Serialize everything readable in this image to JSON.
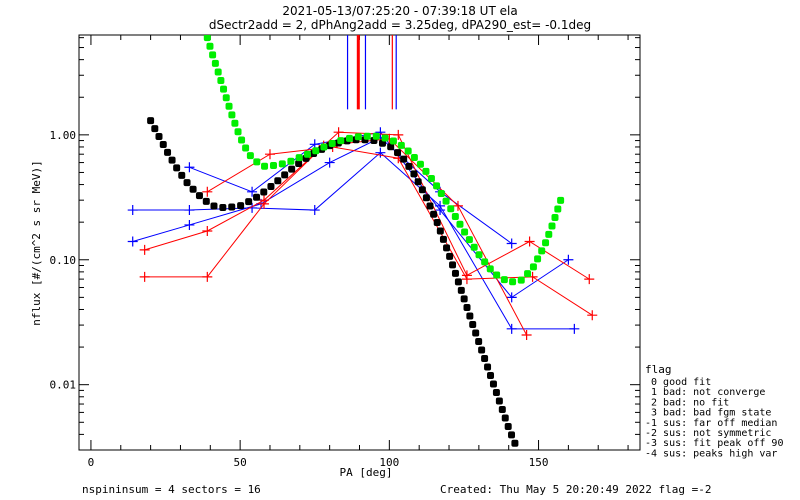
{
  "chart_data": {
    "type": "line",
    "title": "2021-05-13/07:25:20 - 07:39:18 UT ela",
    "subtitle": "dSectr2add = 2, dPhAng2add = 3.25deg, dPA290_est=  -0.1deg",
    "xlabel": "PA [deg]",
    "ylabel": "nflux [#/(cm^2 s sr MeV)]",
    "xlim": [
      -4,
      184
    ],
    "ylim": [
      0.003,
      6.3
    ],
    "yscale": "log",
    "xticks": [
      0,
      50,
      100,
      150
    ],
    "xtick_labels": [
      "0",
      "50",
      "100",
      "150"
    ],
    "yticks": [
      0.01,
      0.1,
      1.0
    ],
    "ytick_labels": [
      "0.01",
      "0.10",
      "1.00"
    ],
    "grid": false,
    "series": [
      {
        "name": "blue-1",
        "color": "#0000ff",
        "x": [
          14,
          33,
          54,
          75,
          97,
          117,
          141,
          162
        ],
        "y": [
          0.25,
          0.25,
          0.26,
          0.25,
          0.72,
          0.27,
          0.028,
          0.028
        ]
      },
      {
        "name": "blue-2",
        "color": "#0000ff",
        "x": [
          33,
          54,
          75,
          97,
          117,
          141,
          160
        ],
        "y": [
          0.55,
          0.35,
          0.84,
          1.05,
          0.25,
          0.05,
          0.1
        ]
      },
      {
        "name": "blue-3",
        "color": "#0000ff",
        "x": [
          14,
          33,
          57,
          80,
          97,
          117,
          141
        ],
        "y": [
          0.14,
          0.19,
          0.28,
          0.6,
          0.95,
          0.35,
          0.135
        ]
      },
      {
        "name": "red-1",
        "color": "#ff0000",
        "x": [
          18,
          39,
          58,
          78,
          100,
          123,
          146
        ],
        "y": [
          0.073,
          0.073,
          0.28,
          0.82,
          0.93,
          0.27,
          0.025
        ]
      },
      {
        "name": "red-2",
        "color": "#ff0000",
        "x": [
          18,
          39,
          58,
          83,
          103,
          126,
          147,
          167
        ],
        "y": [
          0.12,
          0.17,
          0.3,
          1.05,
          1.0,
          0.075,
          0.14,
          0.07
        ]
      },
      {
        "name": "red-3",
        "color": "#ff0000",
        "x": [
          39,
          60,
          81,
          103,
          126,
          148,
          168
        ],
        "y": [
          0.35,
          0.7,
          0.8,
          0.65,
          0.07,
          0.073,
          0.036
        ]
      }
    ],
    "fits": [
      {
        "name": "fit-black",
        "color": "#000000",
        "style": "dotted-thick",
        "x": [
          20,
          23,
          26,
          29,
          32,
          35,
          38,
          41,
          45,
          50,
          55,
          60,
          65,
          70,
          75,
          80,
          85,
          90,
          95,
          100,
          104,
          108,
          112,
          116,
          120,
          124,
          128,
          132,
          136,
          140,
          143
        ],
        "y": [
          1.3,
          0.95,
          0.7,
          0.53,
          0.42,
          0.35,
          0.3,
          0.27,
          0.26,
          0.27,
          0.31,
          0.38,
          0.48,
          0.6,
          0.72,
          0.82,
          0.89,
          0.92,
          0.9,
          0.82,
          0.68,
          0.5,
          0.33,
          0.2,
          0.11,
          0.058,
          0.03,
          0.016,
          0.0085,
          0.0045,
          0.003
        ]
      },
      {
        "name": "fit-green",
        "color": "#00ee00",
        "style": "dotted-thick",
        "x": [
          39,
          41,
          43,
          45,
          47,
          49,
          51,
          53,
          55,
          58,
          62,
          66,
          70,
          75,
          80,
          85,
          90,
          95,
          100,
          105,
          110,
          115,
          120,
          125,
          130,
          135,
          140,
          144,
          148,
          152,
          155,
          158
        ],
        "y": [
          6.0,
          4.2,
          3.0,
          2.1,
          1.5,
          1.1,
          0.85,
          0.7,
          0.62,
          0.56,
          0.57,
          0.6,
          0.66,
          0.74,
          0.84,
          0.92,
          0.97,
          0.98,
          0.93,
          0.8,
          0.6,
          0.42,
          0.27,
          0.17,
          0.11,
          0.078,
          0.066,
          0.068,
          0.085,
          0.13,
          0.2,
          0.33
        ]
      }
    ],
    "vertical_markers": [
      {
        "x": 86,
        "color": "#0000ff",
        "y_from": 1.6
      },
      {
        "x": 89.6,
        "color": "#ff0000",
        "y_from": 1.6,
        "thick": true
      },
      {
        "x": 92,
        "color": "#0000ff",
        "y_from": 1.6
      },
      {
        "x": 101,
        "color": "#ff0000",
        "y_from": 1.6
      },
      {
        "x": 102.3,
        "color": "#0000ff",
        "y_from": 1.6
      }
    ],
    "legend": {
      "title": "flag",
      "placement": "bottom-right-outside",
      "entries": [
        " 0 good fit",
        " 1 bad: not converge",
        " 2 bad: no fit",
        " 3 bad: bad fgm state",
        "-1 sus: far off median",
        "-2 sus: not symmetric",
        "-3 sus: fit peak off 90",
        "-4 sus: peaks high var"
      ]
    },
    "footer_left": "nspininsum =  4  sectors = 16",
    "footer_right": "Created: Thu May  5 20:20:49 2022   flag =-2"
  }
}
